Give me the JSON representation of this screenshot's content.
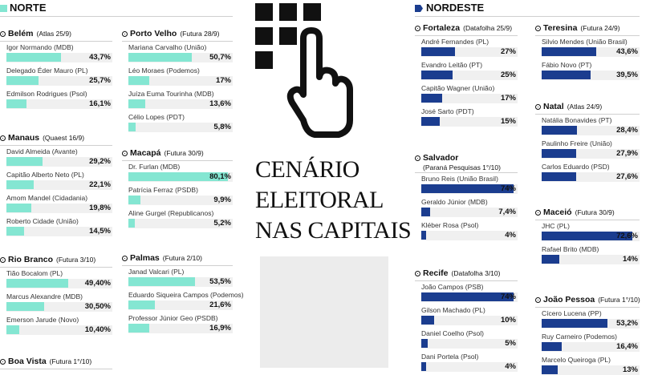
{
  "title": {
    "lines": [
      "CENÁRIO",
      "ELEITORAL",
      "NAS CAPITAIS"
    ]
  },
  "regions": [
    {
      "name": "NORTE",
      "color": "#84e6d2",
      "cities": [
        {
          "name": "Belém",
          "source": "(Atlas 25/9)",
          "candidates": [
            {
              "name": "Igor Normando (MDB)",
              "value": 43.7,
              "label": "43,7%"
            },
            {
              "name": "Delegado Éder Mauro (PL)",
              "value": 25.7,
              "label": "25,7%"
            },
            {
              "name": "Edmilson Rodrigues (Psol)",
              "value": 16.1,
              "label": "16,1%"
            }
          ]
        },
        {
          "name": "Manaus",
          "source": "(Quaest 16/9)",
          "candidates": [
            {
              "name": "David Almeida (Avante)",
              "value": 29.2,
              "label": "29,2%"
            },
            {
              "name": "Capitão Alberto Neto (PL)",
              "value": 22.1,
              "label": "22,1%"
            },
            {
              "name": "Amom Mandel (Cidadania)",
              "value": 19.8,
              "label": "19,8%"
            },
            {
              "name": "Roberto Cidade (União)",
              "value": 14.5,
              "label": "14,5%"
            }
          ]
        },
        {
          "name": "Rio Branco",
          "source": "(Futura 3/10)",
          "candidates": [
            {
              "name": "Tião Bocalom (PL)",
              "value": 49.4,
              "label": "49,40%"
            },
            {
              "name": "Marcus Alexandre (MDB)",
              "value": 30.5,
              "label": "30,50%"
            },
            {
              "name": "Emerson Jarude (Novo)",
              "value": 10.4,
              "label": "10,40%"
            }
          ]
        },
        {
          "name": "Boa Vista",
          "source": "(Futura 1°/10)",
          "candidates": []
        },
        {
          "name": "Porto Velho",
          "source": "(Futura 28/9)",
          "candidates": [
            {
              "name": "Mariana Carvalho (União)",
              "value": 50.7,
              "label": "50,7%"
            },
            {
              "name": "Léo Moraes (Podemos)",
              "value": 17,
              "label": "17%"
            },
            {
              "name": "Juíza Euma Tourinha (MDB)",
              "value": 13.6,
              "label": "13,6%"
            },
            {
              "name": "Célio Lopes (PDT)",
              "value": 5.8,
              "label": "5,8%"
            }
          ]
        },
        {
          "name": "Macapá",
          "source": "(Futura 30/9)",
          "candidates": [
            {
              "name": "Dr. Furlan (MDB)",
              "value": 80.1,
              "label": "80,1%"
            },
            {
              "name": "Patrícia Ferraz (PSDB)",
              "value": 9.9,
              "label": "9,9%"
            },
            {
              "name": "Aline Gurgel (Republicanos)",
              "value": 5.2,
              "label": "5,2%"
            }
          ]
        },
        {
          "name": "Palmas",
          "source": "(Futura 2/10)",
          "candidates": [
            {
              "name": "Janad Valcari (PL)",
              "value": 53.5,
              "label": "53,5%"
            },
            {
              "name": "Eduardo Siqueira Campos (Podemos)",
              "value": 21.6,
              "label": "21,6%"
            },
            {
              "name": "Professor Júnior Geo (PSDB)",
              "value": 16.9,
              "label": "16,9%"
            }
          ]
        }
      ]
    },
    {
      "name": "NORDESTE",
      "color": "#1b3d8f",
      "cities": [
        {
          "name": "Fortaleza",
          "source": "(Datafolha 25/9)",
          "candidates": [
            {
              "name": "André Fernandes (PL)",
              "value": 27,
              "label": "27%"
            },
            {
              "name": "Evandro Leitão (PT)",
              "value": 25,
              "label": "25%"
            },
            {
              "name": "Capitão Wagner (União)",
              "value": 17,
              "label": "17%"
            },
            {
              "name": "José Sarto (PDT)",
              "value": 15,
              "label": "15%"
            }
          ]
        },
        {
          "name": "Salvador",
          "source": "(Paraná Pesquisas 1°/10)",
          "candidates": [
            {
              "name": "Bruno Reis (União Brasil)",
              "value": 74,
              "label": "74%"
            },
            {
              "name": "Geraldo Júnior (MDB)",
              "value": 7.4,
              "label": "7,4%"
            },
            {
              "name": "Kléber Rosa (Psol)",
              "value": 4,
              "label": "4%"
            }
          ]
        },
        {
          "name": "Recife",
          "source": "(Datafolha 3/10)",
          "candidates": [
            {
              "name": "João Campos (PSB)",
              "value": 74,
              "label": "74%"
            },
            {
              "name": "Gilson Machado (PL)",
              "value": 10,
              "label": "10%"
            },
            {
              "name": "Daniel Coelho (Psol)",
              "value": 5,
              "label": "5%"
            },
            {
              "name": "Dani Portela (Psol)",
              "value": 4,
              "label": "4%"
            }
          ]
        },
        {
          "name": "Teresina",
          "source": "(Futura 24/9)",
          "candidates": [
            {
              "name": "Silvio Mendes (União Brasil)",
              "value": 43.6,
              "label": "43,6%"
            },
            {
              "name": "Fábio Novo (PT)",
              "value": 39.5,
              "label": "39,5%"
            }
          ]
        },
        {
          "name": "Natal",
          "source": "(Atlas 24/9)",
          "candidates": [
            {
              "name": "Natália Bonavides (PT)",
              "value": 28.4,
              "label": "28,4%"
            },
            {
              "name": "Paulinho Freire (União)",
              "value": 27.9,
              "label": "27,9%"
            },
            {
              "name": "Carlos Eduardo (PSD)",
              "value": 27.6,
              "label": "27,6%"
            }
          ]
        },
        {
          "name": "Maceió",
          "source": "(Futura 30/9)",
          "candidates": [
            {
              "name": "JHC (PL)",
              "value": 72.6,
              "label": "72,6%"
            },
            {
              "name": "Rafael Brito (MDB)",
              "value": 14,
              "label": "14%"
            }
          ]
        },
        {
          "name": "João Pessoa",
          "source": "(Futura 1°/10)",
          "candidates": [
            {
              "name": "Cícero Lucena (PP)",
              "value": 53.2,
              "label": "53,2%"
            },
            {
              "name": "Ruy Carneiro (Podemos)",
              "value": 16.4,
              "label": "16,4%"
            },
            {
              "name": "Marcelo Queiroga (PL)",
              "value": 13,
              "label": "13%"
            }
          ]
        }
      ]
    }
  ]
}
